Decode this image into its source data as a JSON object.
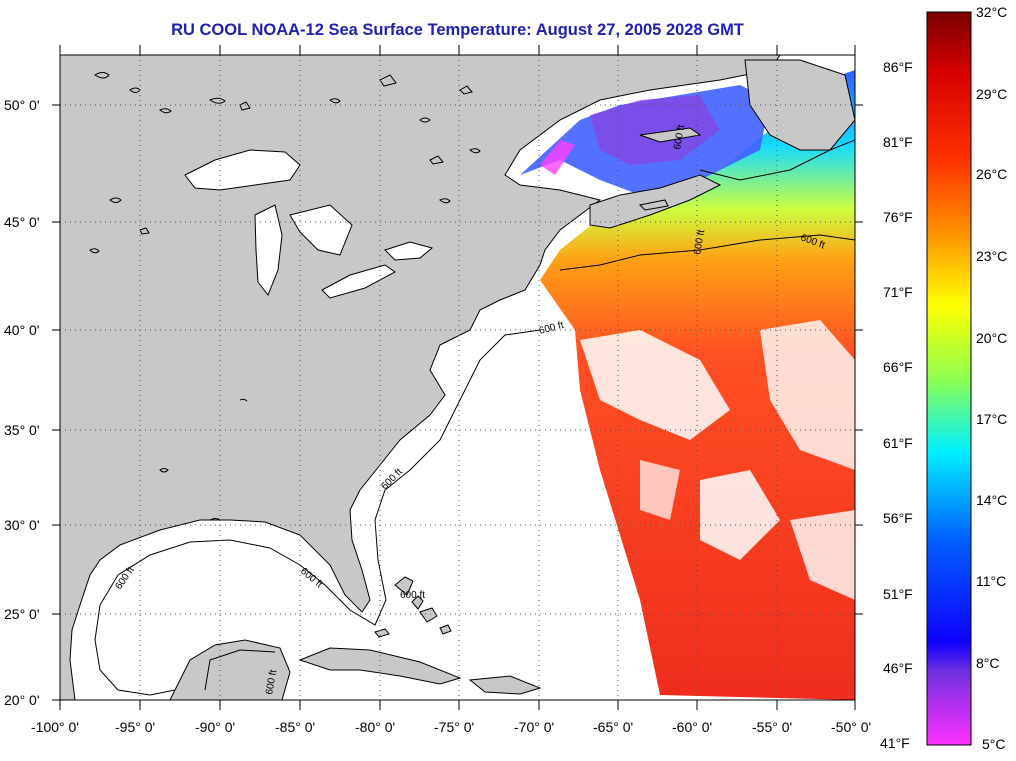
{
  "title": "RU COOL  NOAA-12  Sea Surface Temperature:  August 27, 2005 2028 GMT",
  "map": {
    "lat_labels": [
      "50° 0'",
      "45° 0'",
      "40° 0'",
      "35° 0'",
      "30° 0'",
      "25° 0'",
      "20° 0'"
    ],
    "lon_labels": [
      "-100° 0'",
      "-95° 0'",
      "-90° 0'",
      "-85° 0'",
      "-80° 0'",
      "-75° 0'",
      "-70° 0'",
      "-65° 0'",
      "-60° 0'",
      "-55° 0'",
      "-50° 0'"
    ],
    "contour_label": "600 ft",
    "colors": {
      "land": "#c8c8c8",
      "water_no_data": "#ffffff",
      "coastline": "#000000",
      "grid": "#555555"
    }
  },
  "colorbar": {
    "celsius_labels": [
      "32°C",
      "29°C",
      "26°C",
      "23°C",
      "20°C",
      "17°C",
      "14°C",
      "11°C",
      "8°C",
      "5°C"
    ],
    "fahrenheit_labels": [
      "86°F",
      "81°F",
      "76°F",
      "71°F",
      "66°F",
      "61°F",
      "56°F",
      "51°F",
      "46°F",
      "41°F"
    ],
    "scale_colors": [
      "#8b0000",
      "#ff2a00",
      "#ff8800",
      "#ffff00",
      "#7fff55",
      "#00e5ff",
      "#0055ff",
      "#2200ff",
      "#ff00cc"
    ]
  }
}
